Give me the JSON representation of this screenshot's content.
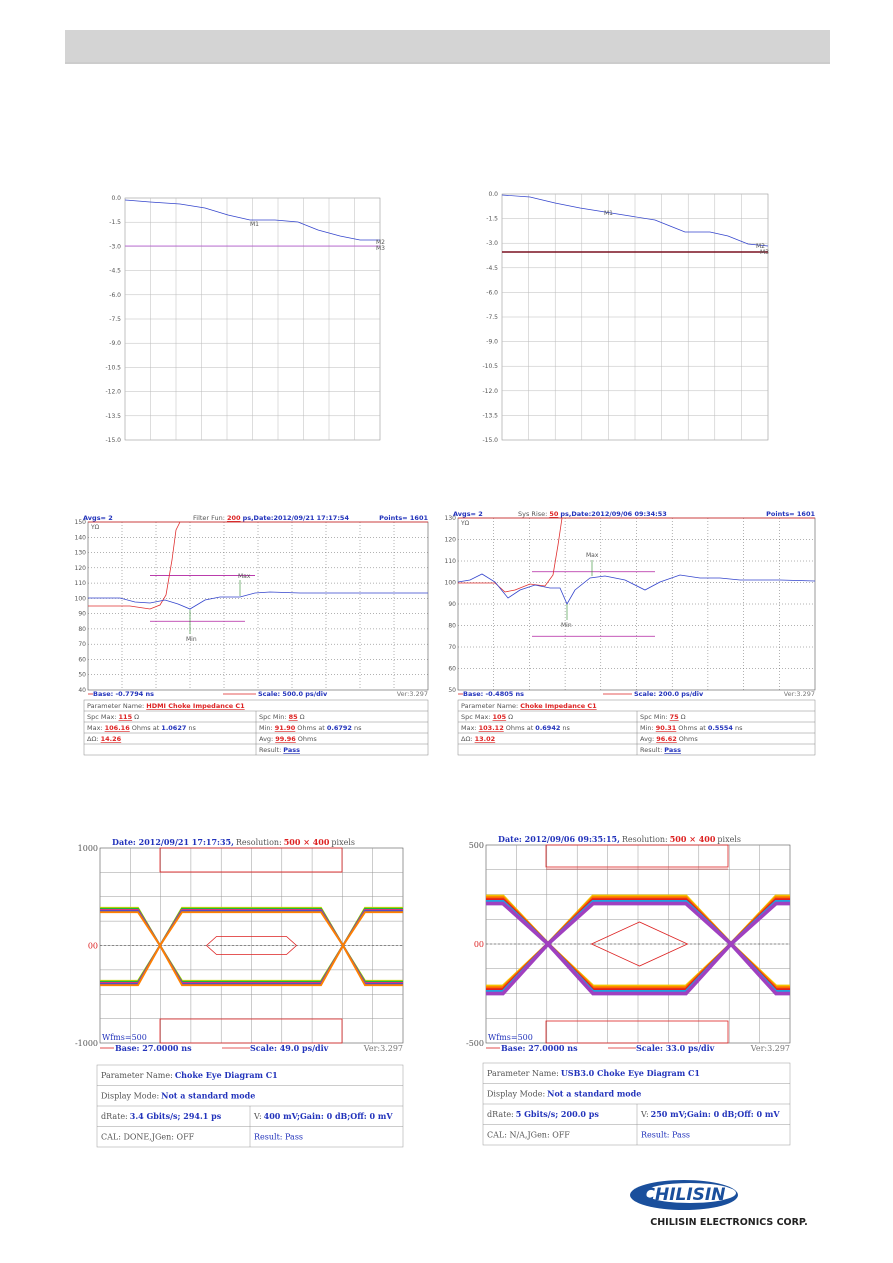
{
  "sparam": [
    {
      "yticks": [
        "0.0",
        "-1.5",
        "-3.0",
        "-4.5",
        "-6.0",
        "-7.5",
        "-9.0",
        "-10.5",
        "-12.0",
        "-13.5",
        "-15.0"
      ],
      "markers": [
        "M1",
        "M2",
        "M3"
      ]
    },
    {
      "yticks": [
        "0.0",
        "-1.5",
        "-3.0",
        "-4.5",
        "-6.0",
        "-7.5",
        "-9.0",
        "-10.5",
        "-12.0",
        "-13.5",
        "-15.0"
      ],
      "markers": [
        "M1",
        "M2",
        "M3"
      ]
    }
  ],
  "tdr": [
    {
      "avgs": "Avgs= 2",
      "mode_label": "Filter Fun:",
      "mode_value": "200",
      "date": "ps,Date:2012/09/21 17:17:54",
      "points": "Points= 1601",
      "unit": "YΩ",
      "yticks": [
        "150",
        "140",
        "130",
        "120",
        "110",
        "100",
        "90",
        "80",
        "70",
        "60",
        "50",
        "40"
      ],
      "max_label": "Max",
      "min_label": "Min",
      "base": "Base: -0.7794 ns",
      "scale": "Scale: 500.0 ps/div",
      "version": "Ver:3.297",
      "table": {
        "param_label": "Parameter Name:",
        "param_value": "HDMI Choke Impedance C1",
        "spc_max_label": "Spc Max:",
        "spc_max": "115",
        "ohm": "Ω",
        "spc_min_label": "Spc Min:",
        "spc_min": "85",
        "max_label": "Max:",
        "max": "106.16",
        "max_at": "Ohms at",
        "max_time": "1.0627",
        "ns": "ns",
        "min_label": "Min:",
        "min": "91.90",
        "min_at": "Ohms at",
        "min_time": "0.6792",
        "delta_label": "ΔΩ:",
        "delta": "14.26",
        "avg_label": "Avg:",
        "avg": "99.96",
        "avg_unit": "Ohms",
        "result_label": "Result:",
        "result": "Pass"
      }
    },
    {
      "avgs": "Avgs= 2",
      "mode_label": "Sys Rise:",
      "mode_value": "50",
      "date": "ps,Date:2012/09/06 09:34:53",
      "points": "Points= 1601",
      "unit": "YΩ",
      "yticks": [
        "130",
        "120",
        "110",
        "100",
        "90",
        "80",
        "70",
        "60",
        "50"
      ],
      "max_label": "Max",
      "min_label": "Min",
      "base": "Base: -0.4805 ns",
      "scale": "Scale: 200.0 ps/div",
      "version": "Ver:3.297",
      "table": {
        "param_label": "Parameter Name:",
        "param_value": "Choke Impedance C1",
        "spc_max_label": "Spc Max:",
        "spc_max": "105",
        "ohm": "Ω",
        "spc_min_label": "Spc Min:",
        "spc_min": "75",
        "max_label": "Max:",
        "max": "103.12",
        "max_at": "Ohms at",
        "max_time": "0.6942",
        "ns": "ns",
        "min_label": "Min:",
        "min": "90.31",
        "min_at": "Ohms at",
        "min_time": "0.5554",
        "delta_label": "ΔΩ:",
        "delta": "13.02",
        "avg_label": "Avg:",
        "avg": "96.62",
        "avg_unit": "Ohms",
        "result_label": "Result:",
        "result": "Pass"
      }
    }
  ],
  "eye": [
    {
      "date": "Date: 2012/09/21 17:17:35,",
      "res_label": "Resolution:",
      "res": "500 × 400",
      "pixels": "pixels",
      "ytop": "1000",
      "ymid": "00",
      "ybot": "-1000",
      "wfms": "Wfms=500",
      "base": "Base: 27.0000 ns",
      "scale": "Scale: 49.0 ps/div",
      "version": "Ver:3.297",
      "table": {
        "param_label": "Parameter Name:",
        "param_value": "Choke Eye Diagram C1",
        "mode_label": "Display Mode:",
        "mode_value": "Not a standard mode",
        "drate_label": "dRate:",
        "drate": "3.4 Gbits/s; 294.1 ps",
        "v_label": "V:",
        "v": "400 mV;Gain: 0 dB;Off: 0 mV",
        "cal": "CAL: DONE,JGen: OFF",
        "result": "Result: Pass"
      }
    },
    {
      "date": "Date: 2012/09/06 09:35:15,",
      "res_label": "Resolution:",
      "res": "500 × 400",
      "pixels": "pixels",
      "ytop": "500",
      "ymid": "00",
      "ybot": "-500",
      "wfms": "Wfms=500",
      "base": "Base: 27.0000 ns",
      "scale": "Scale: 33.0 ps/div",
      "version": "Ver:3.297",
      "table": {
        "param_label": "Parameter Name:",
        "param_value": "USB3.0 Choke Eye Diagram C1",
        "mode_label": "Display Mode:",
        "mode_value": "Not a standard mode",
        "drate_label": "dRate:",
        "drate": "5 Gbits/s; 200.0 ps",
        "v_label": "V:",
        "v": "250 mV;Gain: 0 dB;Off: 0 mV",
        "cal": "CAL: N/A,JGen: OFF",
        "result": "Result: Pass"
      }
    }
  ],
  "logo": {
    "brand": "CHILISIN",
    "company": "CHILISIN ELECTRONICS CORP."
  }
}
